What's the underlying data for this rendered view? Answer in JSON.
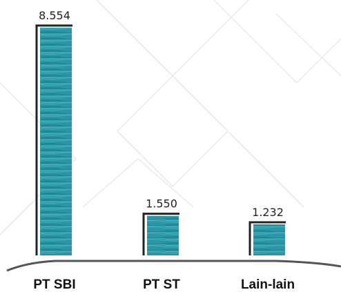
{
  "chart_data": {
    "type": "bar",
    "categories": [
      "PT SBI",
      "PT ST",
      "Lain-lain"
    ],
    "values": [
      8554,
      1550,
      1232
    ],
    "value_labels": [
      "8.554",
      "1.550",
      "1.232"
    ],
    "title": "",
    "xlabel": "",
    "ylabel": "",
    "ylim": [
      0,
      8554
    ],
    "grid": false,
    "legend": "none"
  },
  "colors": {
    "bar_fill": "#2a97a6",
    "bar_scribble": "#1f8593",
    "bar_outline": "#222222",
    "baseline": "#555555",
    "background_pattern": "#e9e9ec"
  }
}
